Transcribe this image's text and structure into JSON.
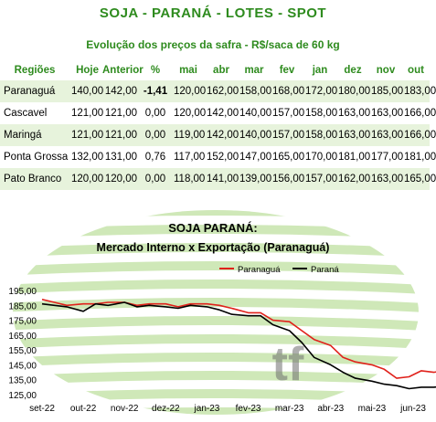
{
  "header": {
    "title": "SOJA - PARANÁ - LOTES - SPOT",
    "subtitle": "Evolução dos preços da safra - R$/saca de 60 kg"
  },
  "table": {
    "columns": [
      "Regiões",
      "Hoje",
      "Anterior",
      "%",
      "mai",
      "abr",
      "mar",
      "fev",
      "jan",
      "dez",
      "nov",
      "out"
    ],
    "rows": [
      {
        "regiao": "Paranaguá",
        "hoje": "140,00",
        "anterior": "142,00",
        "pct": "-1,41",
        "pct_sign": "neg",
        "mai": "120,00",
        "abr": "162,00",
        "mar": "158,00",
        "fev": "168,00",
        "jan": "172,00",
        "dez": "180,00",
        "nov": "185,00",
        "out": "183,00"
      },
      {
        "regiao": "Cascavel",
        "hoje": "121,00",
        "anterior": "121,00",
        "pct": "0,00",
        "pct_sign": "zero",
        "mai": "120,00",
        "abr": "142,00",
        "mar": "140,00",
        "fev": "157,00",
        "jan": "158,00",
        "dez": "163,00",
        "nov": "163,00",
        "out": "166,00"
      },
      {
        "regiao": "Maringá",
        "hoje": "121,00",
        "anterior": "121,00",
        "pct": "0,00",
        "pct_sign": "zero",
        "mai": "119,00",
        "abr": "142,00",
        "mar": "140,00",
        "fev": "157,00",
        "jan": "158,00",
        "dez": "163,00",
        "nov": "163,00",
        "out": "166,00"
      },
      {
        "regiao": "Ponta Grossa",
        "hoje": "132,00",
        "anterior": "131,00",
        "pct": "0,76",
        "pct_sign": "pos",
        "mai": "117,00",
        "abr": "152,00",
        "mar": "147,00",
        "fev": "165,00",
        "jan": "170,00",
        "dez": "181,00",
        "nov": "177,00",
        "out": "181,00"
      },
      {
        "regiao": "Pato Branco",
        "hoje": "120,00",
        "anterior": "120,00",
        "pct": "0,00",
        "pct_sign": "zero",
        "mai": "118,00",
        "abr": "141,00",
        "mar": "139,00",
        "fev": "156,00",
        "jan": "157,00",
        "dez": "162,00",
        "nov": "163,00",
        "out": "165,00"
      }
    ]
  },
  "colors": {
    "accent": "#2e8b1e",
    "negative": "#e0211b",
    "neutral": "#2f74c6",
    "bg_stripe": "#cfe8b8"
  },
  "chart_data": {
    "type": "line",
    "title": "SOJA PARANÁ:",
    "subtitle": "Mercado Interno x Exportação (Paranaguá)",
    "watermark": "tf",
    "legend_position": "top-right",
    "ylim": [
      125,
      195
    ],
    "y_ticks": [
      "195,00",
      "185,00",
      "175,00",
      "165,00",
      "155,00",
      "145,00",
      "135,00",
      "125,00"
    ],
    "x_ticks": [
      "set-22",
      "out-22",
      "nov-22",
      "dez-22",
      "jan-23",
      "fev-23",
      "mar-23",
      "abr-23",
      "mai-23",
      "jun-23"
    ],
    "series": [
      {
        "name": "Paranaguá",
        "color": "#e0211b",
        "x": [
          0,
          0.3,
          0.6,
          1.0,
          1.3,
          1.6,
          2.0,
          2.3,
          2.6,
          3.0,
          3.3,
          3.6,
          4.0,
          4.3,
          4.6,
          5.0,
          5.3,
          5.6,
          6.0,
          6.3,
          6.6,
          7.0,
          7.3,
          7.6,
          8.0,
          8.3,
          8.6,
          8.9,
          9.2,
          9.5,
          9.9
        ],
        "y": [
          189,
          187,
          185,
          186,
          186,
          187,
          187,
          185,
          186,
          186,
          184,
          186,
          186,
          185,
          183,
          180,
          180,
          175,
          174,
          168,
          162,
          158,
          150,
          147,
          145,
          142,
          136,
          137,
          141,
          140,
          142
        ]
      },
      {
        "name": "Paraná",
        "color": "#000000",
        "x": [
          0,
          0.3,
          0.6,
          1.0,
          1.3,
          1.6,
          2.0,
          2.3,
          2.6,
          3.0,
          3.3,
          3.6,
          4.0,
          4.3,
          4.6,
          5.0,
          5.3,
          5.6,
          6.0,
          6.3,
          6.6,
          7.0,
          7.3,
          7.6,
          8.0,
          8.3,
          8.6,
          8.9,
          9.2,
          9.5,
          9.9
        ],
        "y": [
          186,
          185,
          184,
          181,
          186,
          185,
          187,
          184,
          185,
          184,
          183,
          185,
          184,
          182,
          179,
          178,
          178,
          172,
          168,
          160,
          150,
          145,
          140,
          136,
          134,
          132,
          131,
          129,
          130,
          130,
          131
        ]
      }
    ]
  }
}
